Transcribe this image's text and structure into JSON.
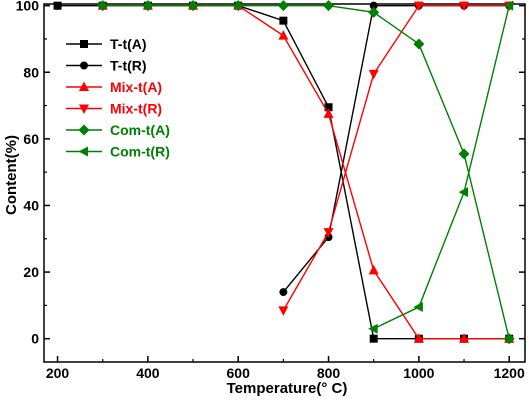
{
  "chart_data": {
    "type": "line",
    "xlabel": "Temperature(° C)",
    "ylabel": "Content(%)",
    "xlim": [
      170,
      1235
    ],
    "ylim": [
      -7,
      100.5
    ],
    "x_ticks": [
      200,
      400,
      600,
      800,
      1000,
      1200
    ],
    "y_ticks": [
      0,
      20,
      40,
      60,
      80,
      100
    ],
    "grid": false,
    "legend_position": "top-left",
    "series": [
      {
        "name": "T-t(A)",
        "color": "#000000",
        "marker": "square",
        "points": [
          [
            200,
            100
          ],
          [
            300,
            100
          ],
          [
            400,
            100
          ],
          [
            500,
            100
          ],
          [
            600,
            100
          ],
          [
            700,
            95.5
          ],
          [
            800,
            69.5
          ],
          [
            900,
            0
          ],
          [
            1000,
            0
          ],
          [
            1100,
            0
          ],
          [
            1200,
            0
          ]
        ]
      },
      {
        "name": "T-t(R)",
        "color": "#000000",
        "marker": "circle",
        "points": [
          [
            700,
            14
          ],
          [
            800,
            30.5
          ],
          [
            900,
            100
          ],
          [
            1000,
            100
          ],
          [
            1100,
            100
          ],
          [
            1200,
            100
          ]
        ]
      },
      {
        "name": "Mix-t(A)",
        "color": "#ff0000",
        "marker": "triangle-up",
        "points": [
          [
            300,
            100
          ],
          [
            400,
            100
          ],
          [
            500,
            100
          ],
          [
            600,
            100
          ],
          [
            700,
            91
          ],
          [
            800,
            67.5
          ],
          [
            900,
            20.5
          ],
          [
            1000,
            0
          ],
          [
            1100,
            0
          ],
          [
            1200,
            0
          ]
        ]
      },
      {
        "name": "Mix-t(R)",
        "color": "#ff0000",
        "marker": "triangle-down",
        "points": [
          [
            700,
            8.5
          ],
          [
            800,
            32
          ],
          [
            900,
            79.5
          ],
          [
            1000,
            100
          ],
          [
            1100,
            100
          ],
          [
            1200,
            100
          ]
        ]
      },
      {
        "name": "Com-t(A)",
        "color": "#008000",
        "marker": "diamond",
        "points": [
          [
            300,
            100
          ],
          [
            400,
            100
          ],
          [
            500,
            100
          ],
          [
            600,
            100
          ],
          [
            700,
            100
          ],
          [
            800,
            100
          ],
          [
            900,
            98
          ],
          [
            1000,
            88.5
          ],
          [
            1100,
            55.5
          ],
          [
            1200,
            0
          ]
        ]
      },
      {
        "name": "Com-t(R)",
        "color": "#008000",
        "marker": "triangle-left",
        "points": [
          [
            900,
            3
          ],
          [
            1000,
            9.5
          ],
          [
            1100,
            44
          ],
          [
            1200,
            100
          ]
        ]
      }
    ]
  }
}
